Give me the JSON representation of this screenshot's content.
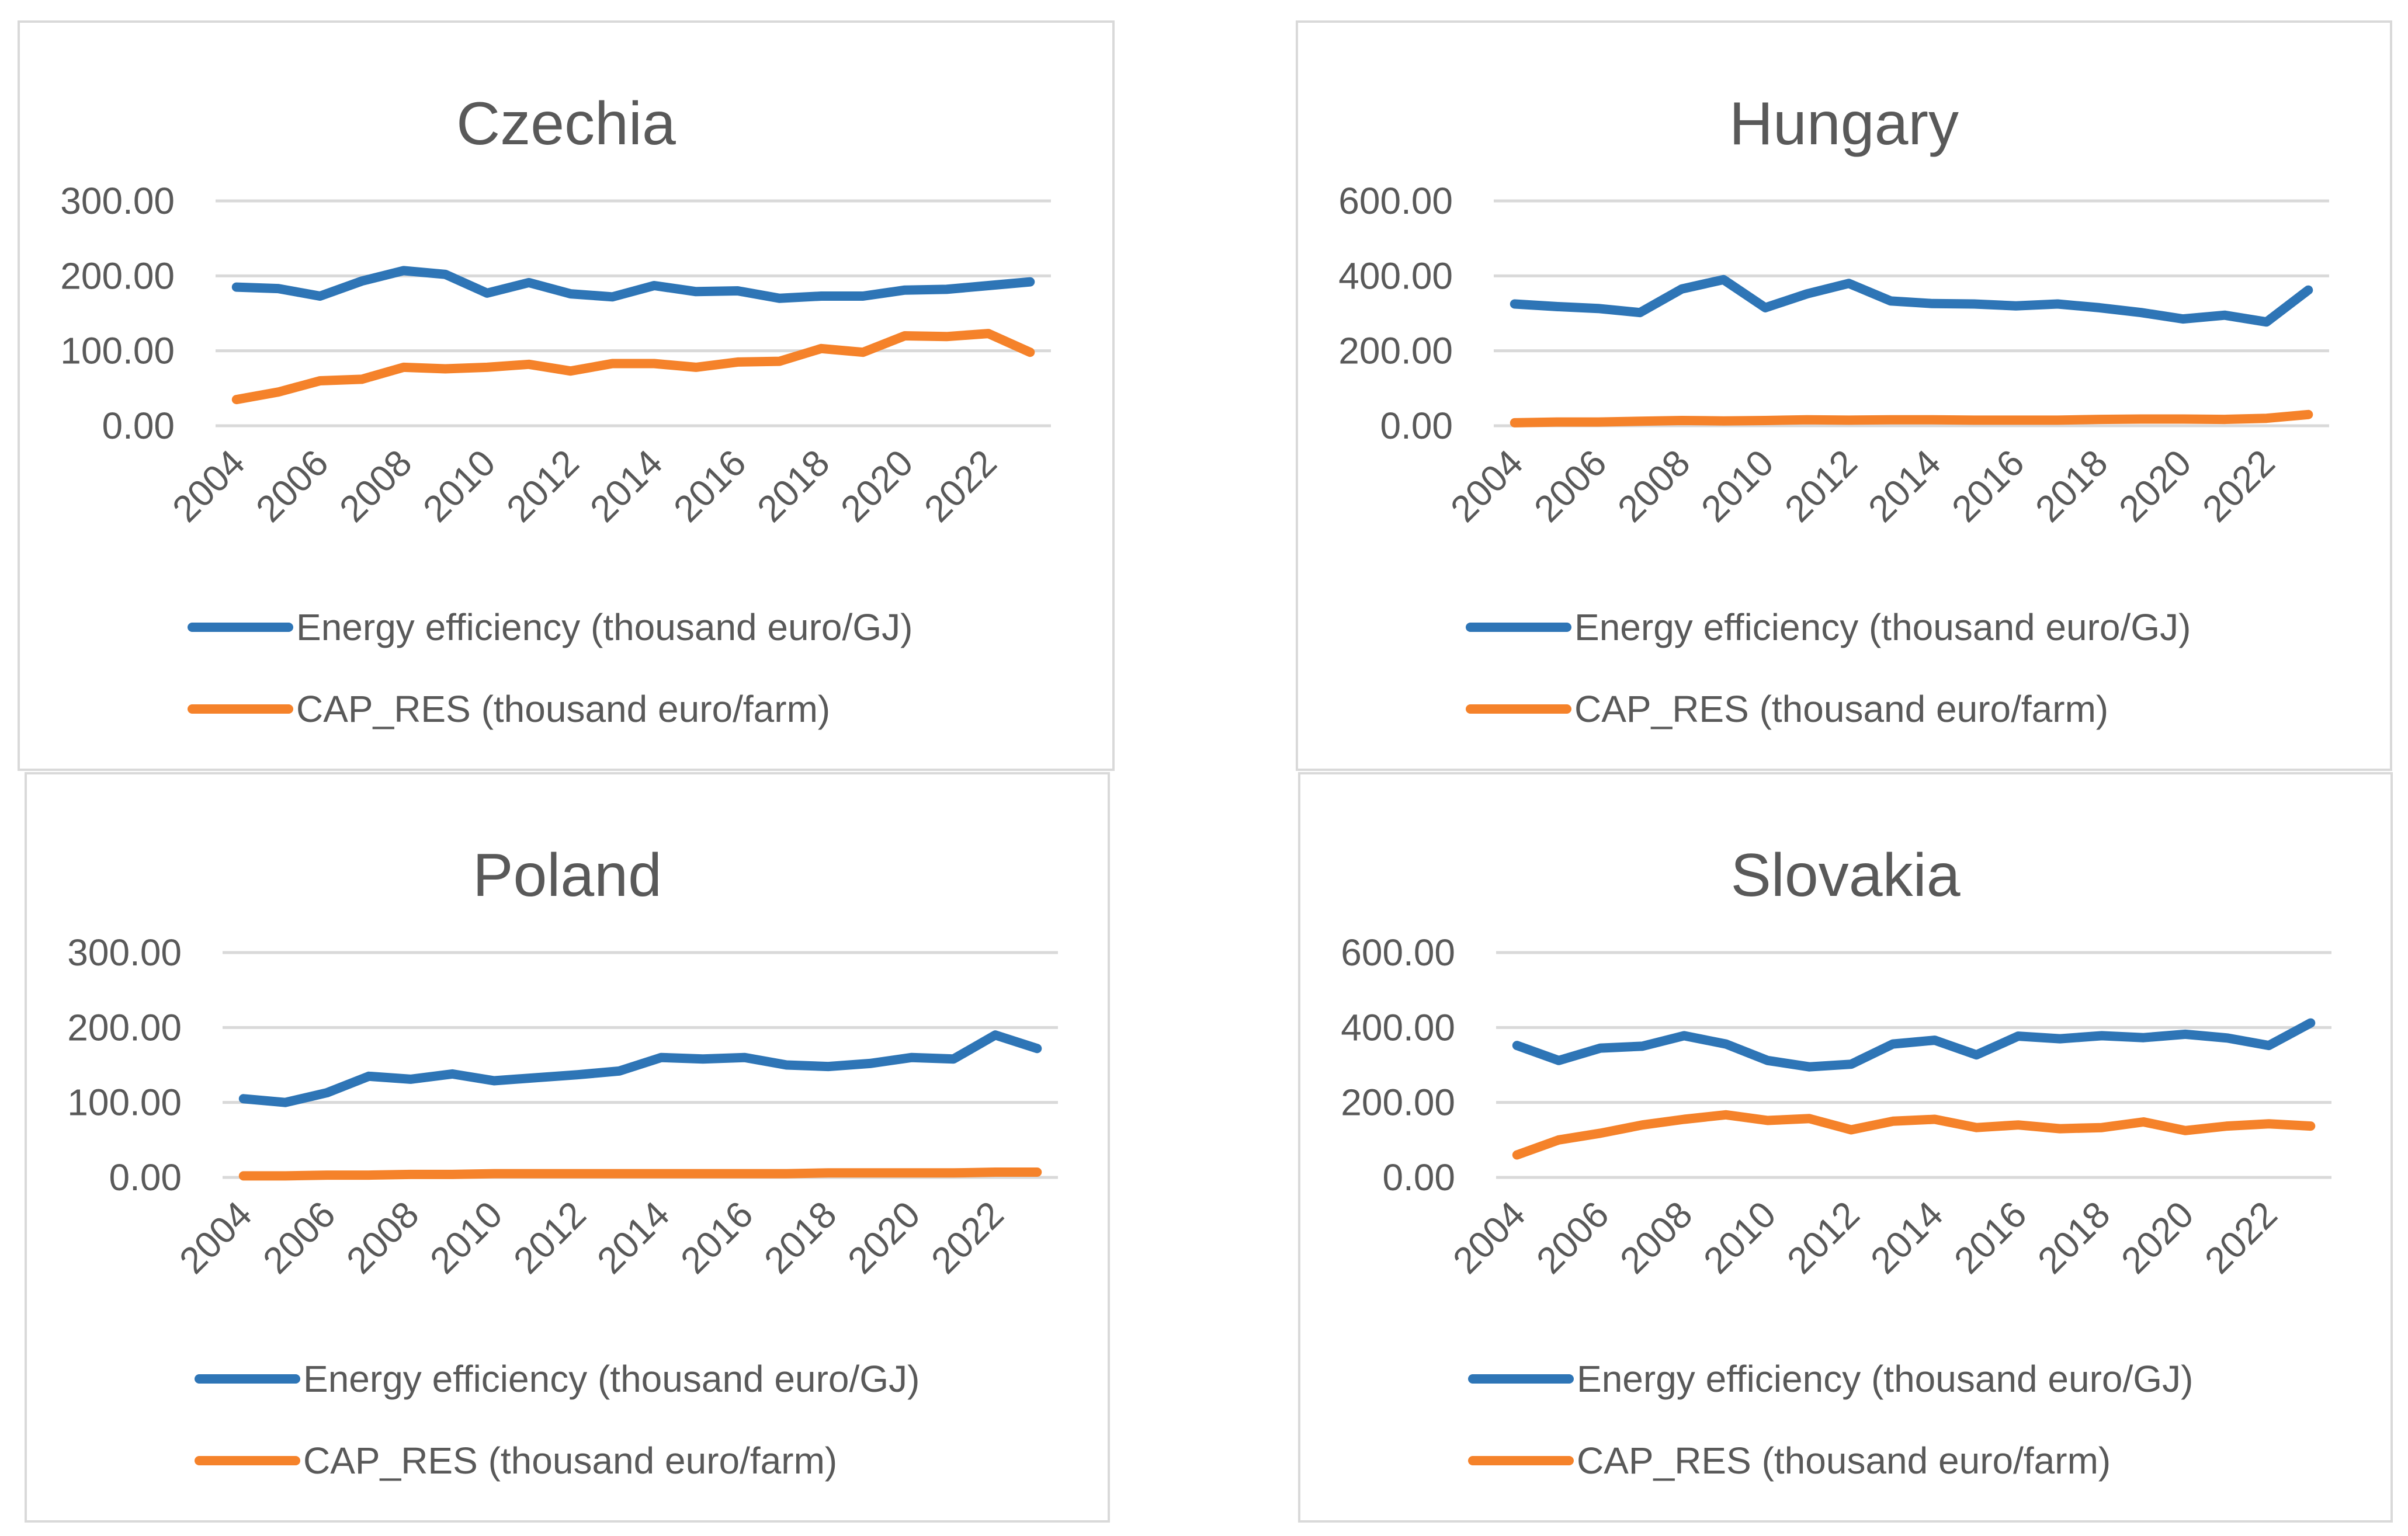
{
  "chart_data": [
    {
      "type": "line",
      "title": "Czechia",
      "xlabel": "",
      "ylabel": "",
      "ylim": [
        0,
        300
      ],
      "yticks": [
        "0.00",
        "100.00",
        "200.00",
        "300.00"
      ],
      "x": [
        2004,
        2005,
        2006,
        2007,
        2008,
        2009,
        2010,
        2011,
        2012,
        2013,
        2014,
        2015,
        2016,
        2017,
        2018,
        2019,
        2020,
        2021,
        2022,
        2023
      ],
      "xtick_labels": [
        "2004",
        "2006",
        "2008",
        "2010",
        "2012",
        "2014",
        "2016",
        "2018",
        "2020",
        "2022"
      ],
      "legend_position": "bottom",
      "grid": true,
      "series": [
        {
          "name": "Energy efficiency (thousand euro/GJ)",
          "color": "#2E75B6",
          "values": [
            185,
            183,
            173,
            193,
            207,
            202,
            177,
            191,
            176,
            172,
            187,
            179,
            180,
            170,
            173,
            173,
            181,
            182,
            187,
            192
          ]
        },
        {
          "name": "CAP_RES (thousand euro/farm)",
          "color": "#F5822A",
          "values": [
            35,
            45,
            60,
            62,
            78,
            76,
            78,
            82,
            73,
            83,
            83,
            78,
            85,
            86,
            103,
            98,
            120,
            119,
            123,
            98
          ]
        }
      ]
    },
    {
      "type": "line",
      "title": "Hungary",
      "xlabel": "",
      "ylabel": "",
      "ylim": [
        0,
        600
      ],
      "yticks": [
        "0.00",
        "200.00",
        "400.00",
        "600.00"
      ],
      "x": [
        2004,
        2005,
        2006,
        2007,
        2008,
        2009,
        2010,
        2011,
        2012,
        2013,
        2014,
        2015,
        2016,
        2017,
        2018,
        2019,
        2020,
        2021,
        2022,
        2023
      ],
      "xtick_labels": [
        "2004",
        "2006",
        "2008",
        "2010",
        "2012",
        "2014",
        "2016",
        "2018",
        "2020",
        "2022"
      ],
      "legend_position": "bottom",
      "grid": true,
      "series": [
        {
          "name": "Energy efficiency (thousand euro/GJ)",
          "color": "#2E75B6",
          "values": [
            325,
            318,
            313,
            302,
            365,
            390,
            315,
            352,
            380,
            333,
            326,
            325,
            320,
            325,
            315,
            302,
            285,
            295,
            277,
            362
          ]
        },
        {
          "name": "CAP_RES (thousand euro/farm)",
          "color": "#F5822A",
          "values": [
            8,
            10,
            10,
            12,
            14,
            13,
            14,
            16,
            15,
            16,
            16,
            15,
            15,
            15,
            17,
            18,
            18,
            17,
            20,
            30
          ]
        }
      ]
    },
    {
      "type": "line",
      "title": "Poland",
      "xlabel": "",
      "ylabel": "",
      "ylim": [
        0,
        300
      ],
      "yticks": [
        "0.00",
        "100.00",
        "200.00",
        "300.00"
      ],
      "x": [
        2004,
        2005,
        2006,
        2007,
        2008,
        2009,
        2010,
        2011,
        2012,
        2013,
        2014,
        2015,
        2016,
        2017,
        2018,
        2019,
        2020,
        2021,
        2022,
        2023
      ],
      "xtick_labels": [
        "2004",
        "2006",
        "2008",
        "2010",
        "2012",
        "2014",
        "2016",
        "2018",
        "2020",
        "2022"
      ],
      "legend_position": "bottom",
      "grid": true,
      "series": [
        {
          "name": "Energy efficiency (thousand euro/GJ)",
          "color": "#2E75B6",
          "values": [
            105,
            100,
            113,
            135,
            131,
            138,
            129,
            133,
            137,
            142,
            160,
            158,
            160,
            150,
            148,
            152,
            160,
            158,
            190,
            172
          ]
        },
        {
          "name": "CAP_RES (thousand euro/farm)",
          "color": "#F5822A",
          "values": [
            2,
            2,
            3,
            3,
            4,
            4,
            5,
            5,
            5,
            5,
            5,
            5,
            5,
            5,
            6,
            6,
            6,
            6,
            7,
            7
          ]
        }
      ]
    },
    {
      "type": "line",
      "title": "Slovakia",
      "xlabel": "",
      "ylabel": "",
      "ylim": [
        0,
        600
      ],
      "yticks": [
        "0.00",
        "200.00",
        "400.00",
        "600.00"
      ],
      "x": [
        2004,
        2005,
        2006,
        2007,
        2008,
        2009,
        2010,
        2011,
        2012,
        2013,
        2014,
        2015,
        2016,
        2017,
        2018,
        2019,
        2020,
        2021,
        2022,
        2023
      ],
      "xtick_labels": [
        "2004",
        "2006",
        "2008",
        "2010",
        "2012",
        "2014",
        "2016",
        "2018",
        "2020",
        "2022"
      ],
      "legend_position": "bottom",
      "grid": true,
      "series": [
        {
          "name": "Energy efficiency (thousand euro/GJ)",
          "color": "#2E75B6",
          "values": [
            352,
            312,
            345,
            350,
            378,
            356,
            312,
            295,
            302,
            356,
            366,
            327,
            377,
            370,
            378,
            373,
            382,
            372,
            352,
            412
          ]
        },
        {
          "name": "CAP_RES (thousand euro/farm)",
          "color": "#F5822A",
          "values": [
            60,
            100,
            118,
            140,
            155,
            167,
            152,
            157,
            127,
            150,
            155,
            133,
            140,
            130,
            133,
            148,
            125,
            137,
            143,
            137
          ]
        }
      ]
    }
  ]
}
